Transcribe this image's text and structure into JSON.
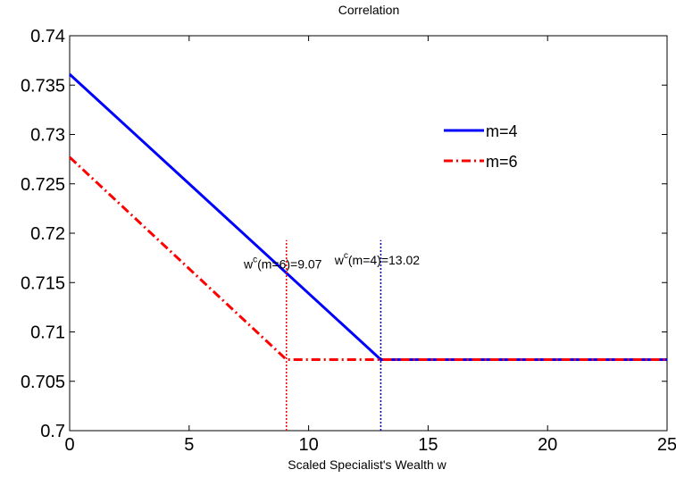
{
  "chart_data": {
    "type": "line",
    "title": "Correlation",
    "xlabel": "Scaled Specialist's Wealth w",
    "ylabel": "",
    "xlim": [
      0,
      25
    ],
    "ylim": [
      0.7,
      0.74
    ],
    "x_ticks": [
      0,
      5,
      10,
      15,
      20,
      25
    ],
    "x_tick_labels": [
      "0",
      "5",
      "10",
      "15",
      "20",
      "25"
    ],
    "y_ticks": [
      0.7,
      0.705,
      0.71,
      0.715,
      0.72,
      0.725,
      0.73,
      0.735,
      0.74
    ],
    "y_tick_labels": [
      "0.7",
      "0.705",
      "0.71",
      "0.715",
      "0.72",
      "0.725",
      "0.73",
      "0.735",
      "0.74"
    ],
    "grid": false,
    "legend_position": "top-right",
    "series": [
      {
        "name": "m=4",
        "color": "#0000ff",
        "line_style": "solid",
        "x": [
          0,
          13.02,
          25
        ],
        "y": [
          0.7361,
          0.7072,
          0.7072
        ]
      },
      {
        "name": "m=6",
        "color": "#ff0000",
        "line_style": "dash-dot",
        "x": [
          0,
          9.07,
          25
        ],
        "y": [
          0.7277,
          0.7072,
          0.7072
        ]
      }
    ],
    "vertical_markers": [
      {
        "x": 13.02,
        "y_range": [
          0.7,
          0.7193
        ],
        "color": "#0000cc",
        "line_style": "dotted",
        "label_base": "w",
        "label_sup": "c",
        "label_rest": "(m=4)=13.02",
        "label_y": 0.7173
      },
      {
        "x": 9.07,
        "y_range": [
          0.7,
          0.7193
        ],
        "color": "#ff0000",
        "line_style": "dotted",
        "label_base": "w",
        "label_sup": "c",
        "label_rest": "(m=6)=9.07",
        "label_y": 0.7169
      }
    ]
  }
}
